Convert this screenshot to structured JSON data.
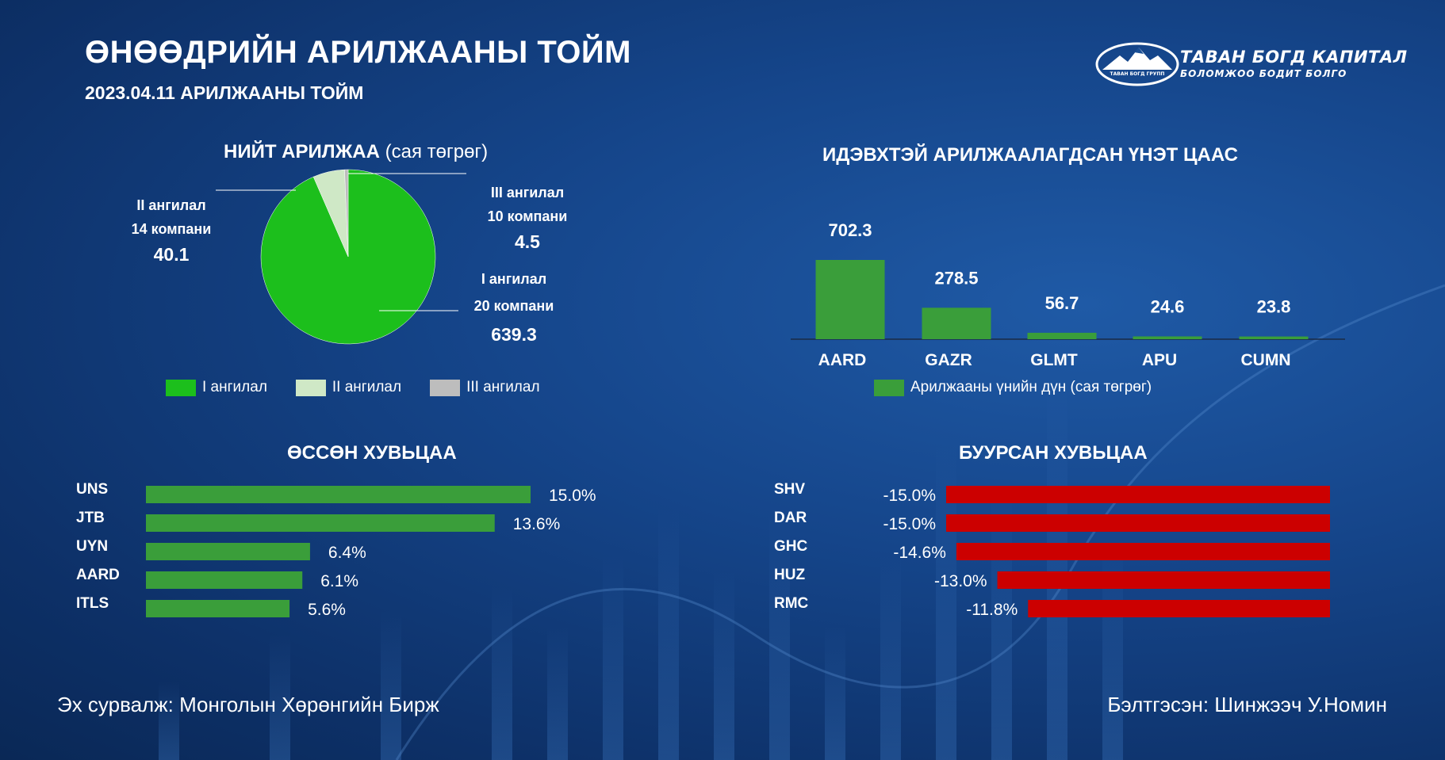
{
  "header": {
    "title": "ӨНӨӨДРИЙН АРИЛЖААНЫ ТОЙМ",
    "subtitle": "2023.04.11 АРИЛЖААНЫ ТОЙМ"
  },
  "logo": {
    "name": "ТАВАН БОГД КАПИТАЛ",
    "tagline": "БОЛОМЖОО БОДИТ БОЛГО",
    "emblem_text": "ТАВАН БОГД ГРУПП",
    "icon": "mountain-icon"
  },
  "colors": {
    "green": "#1cbf1c",
    "green_bar": "#3a9e3a",
    "light_green": "#cfe8c6",
    "gray": "#bdbdbd",
    "red": "#cc0000"
  },
  "chart_data": [
    {
      "type": "pie",
      "title": "НИЙТ АРИЛЖАА",
      "title_unit": "(сая төгрөг)",
      "slices": [
        {
          "name": "I ангилал",
          "companies": "20 компани",
          "value": 639.3,
          "value_label": "639.3",
          "color": "#1cbf1c"
        },
        {
          "name": "II ангилал",
          "companies": "14 компани",
          "value": 40.1,
          "value_label": "40.1",
          "color": "#cfe8c6"
        },
        {
          "name": "III ангилал",
          "companies": "10 компани",
          "value": 4.5,
          "value_label": "4.5",
          "color": "#bdbdbd"
        }
      ],
      "legend": [
        "I ангилал",
        "II ангилал",
        "III ангилал"
      ]
    },
    {
      "type": "bar",
      "title": "ИДЭВХТЭЙ АРИЛЖААЛАГДСАН ҮНЭТ ЦААС",
      "categories": [
        "AARD",
        "GAZR",
        "GLMT",
        "APU",
        "CUMN"
      ],
      "values": [
        702.3,
        278.5,
        56.7,
        24.6,
        23.8
      ],
      "value_labels": [
        "702.3",
        "278.5",
        "56.7",
        "24.6",
        "23.8"
      ],
      "series_name": "Арилжааны үнийн дүн (сая төгрөг)",
      "ylim": [
        0,
        900
      ],
      "grid": false
    },
    {
      "type": "bar",
      "orientation": "horizontal",
      "title": "ӨССӨН ХУВЬЦАА",
      "categories": [
        "UNS",
        "JTB",
        "UYN",
        "AARD",
        "ITLS"
      ],
      "values": [
        15.0,
        13.6,
        6.4,
        6.1,
        5.6
      ],
      "value_labels": [
        "15.0%",
        "13.6%",
        "6.4%",
        "6.1%",
        "5.6%"
      ],
      "xlim": [
        0,
        15.0
      ]
    },
    {
      "type": "bar",
      "orientation": "horizontal",
      "title": "БУУРСАН ХУВЬЦАА",
      "categories": [
        "SHV",
        "DAR",
        "GHC",
        "HUZ",
        "RMC"
      ],
      "values": [
        -15.0,
        -15.0,
        -14.6,
        -13.0,
        -11.8
      ],
      "value_labels": [
        "-15.0%",
        "-15.0%",
        "-14.6%",
        "-13.0%",
        "-11.8%"
      ],
      "xlim": [
        -15.0,
        0
      ]
    }
  ],
  "footer": {
    "source": "Эх сурвалж: Монголын Хөрөнгийн Бирж",
    "author": "Бэлтгэсэн: Шинжээч У.Номин"
  }
}
